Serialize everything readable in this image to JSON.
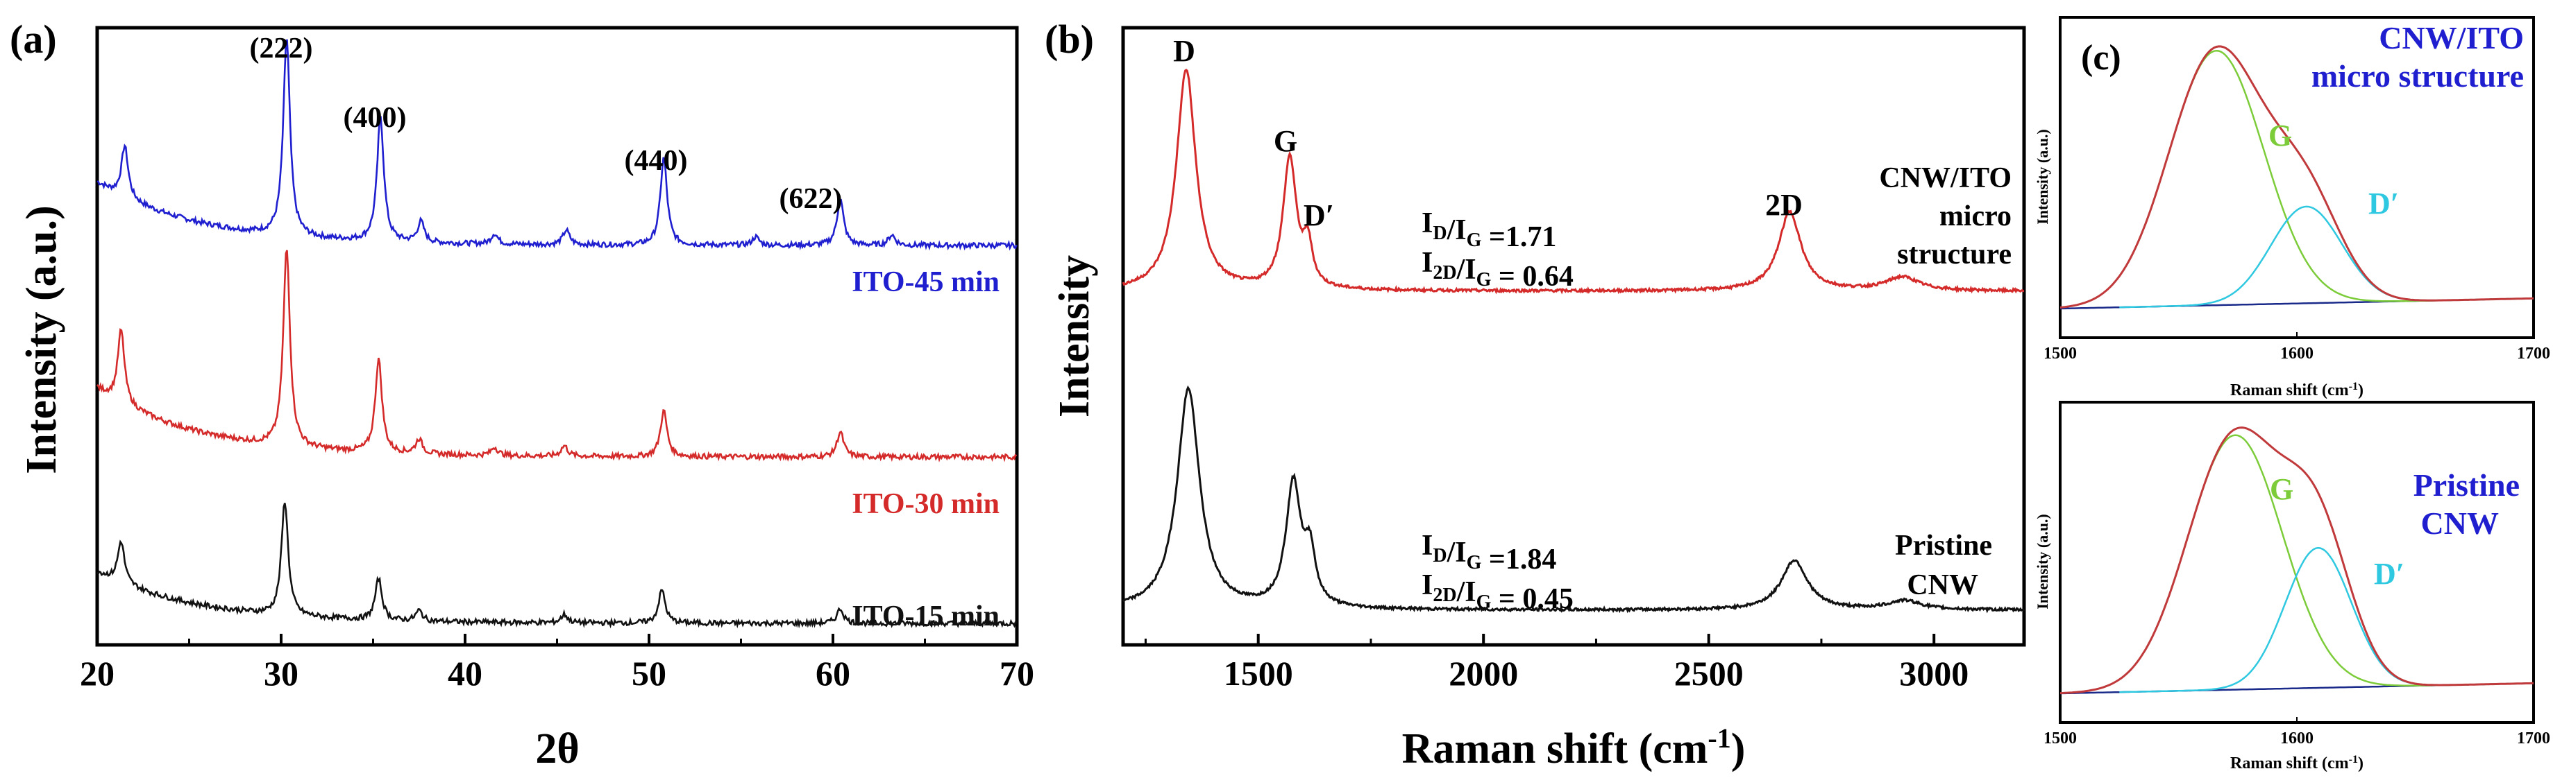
{
  "panels": {
    "a": {
      "label": "(a)",
      "ylabel": "Intensity (a.u.)",
      "xlabel": "2θ",
      "xticks": [
        "20",
        "30",
        "40",
        "50",
        "60",
        "70"
      ],
      "peak_labels": [
        "(222)",
        "(400)",
        "(440)",
        "(622)"
      ],
      "series_labels": [
        "ITO-45 min",
        "ITO-30 min",
        "ITO-15 min"
      ]
    },
    "b": {
      "label": "(b)",
      "ylabel": "Intensity",
      "xlabel": "Raman shift (cm",
      "xlabel_sup": "-1",
      "xlabel_end": ")",
      "xticks": [
        "1500",
        "2000",
        "2500",
        "3000"
      ],
      "peak_labels": [
        "D",
        "G",
        "D′",
        "2D"
      ],
      "ratio_top_1": "I_D/I_G =1.71",
      "ratio_top_2": "I_2D/I_G = 0.64",
      "ratio_bottom_1": "I_D/I_G =1.84",
      "ratio_bottom_2": "I_2D/I_G = 0.45",
      "sample_top_1": "CNW/ITO",
      "sample_top_2": "micro",
      "sample_top_3": "structure",
      "sample_bottom_1": "Pristine",
      "sample_bottom_2": "CNW"
    },
    "c": {
      "label": "(c)",
      "ylabel": "Intensity (a.u.)",
      "xlabel": "Raman shift (cm",
      "xlabel_sup": "-1",
      "xlabel_end": ")",
      "xticks": [
        "1500",
        "1600",
        "1700"
      ],
      "top_title_1": "CNW/ITO",
      "top_title_2": "micro structure",
      "bottom_title_1": "Pristine",
      "bottom_title_2": "CNW",
      "fit_labels": [
        "G",
        "D′"
      ]
    }
  },
  "colors": {
    "blue": "#1f1fd0",
    "red": "#d42a2a",
    "black": "#111111",
    "green": "#7ccc3a",
    "cyan": "#2ec8e0",
    "navy": "#1a2a8a",
    "baseline_cyan": "#38c8d8"
  },
  "chart_data": [
    {
      "type": "line",
      "panel": "a",
      "xlabel": "2θ",
      "ylabel": "Intensity (a.u.)",
      "xlim": [
        20,
        70
      ],
      "series": [
        {
          "name": "ITO-45 min",
          "color": "blue",
          "offset": 2.0,
          "peaks": [
            [
              21.5,
              0.25
            ],
            [
              30.3,
              0.95
            ],
            [
              35.4,
              0.6
            ],
            [
              37.6,
              0.1
            ],
            [
              41.6,
              0.05
            ],
            [
              45.5,
              0.07
            ],
            [
              50.8,
              0.42
            ],
            [
              55.8,
              0.04
            ],
            [
              60.4,
              0.22
            ],
            [
              63.2,
              0.05
            ]
          ],
          "decay": 0.55
        },
        {
          "name": "ITO-30 min",
          "color": "red",
          "offset": 1.0,
          "peaks": [
            [
              21.3,
              0.35
            ],
            [
              30.3,
              0.95
            ],
            [
              35.3,
              0.45
            ],
            [
              37.5,
              0.07
            ],
            [
              41.6,
              0.04
            ],
            [
              45.4,
              0.05
            ],
            [
              50.8,
              0.22
            ],
            [
              60.4,
              0.12
            ]
          ],
          "decay": 0.6
        },
        {
          "name": "ITO-15 min",
          "color": "black",
          "offset": 0.0,
          "peaks": [
            [
              21.3,
              0.2
            ],
            [
              30.2,
              0.55
            ],
            [
              35.3,
              0.2
            ],
            [
              37.5,
              0.05
            ],
            [
              45.4,
              0.04
            ],
            [
              50.7,
              0.16
            ],
            [
              60.4,
              0.07
            ]
          ],
          "decay": 0.45
        }
      ]
    },
    {
      "type": "line",
      "panel": "b",
      "xlabel": "Raman shift (cm-1)",
      "ylabel": "Intensity",
      "xlim": [
        1200,
        3200
      ],
      "series": [
        {
          "name": "CNW/ITO micro structure",
          "color": "red",
          "offset": 1.0,
          "peaks": [
            [
              1340,
              0.98,
              26
            ],
            [
              1570,
              0.58,
              18
            ],
            [
              1610,
              0.18,
              12
            ],
            [
              2680,
              0.35,
              30
            ],
            [
              2930,
              0.06,
              45
            ]
          ]
        },
        {
          "name": "Pristine CNW",
          "color": "black",
          "offset": 0.0,
          "peaks": [
            [
              1345,
              0.98,
              30
            ],
            [
              1578,
              0.55,
              20
            ],
            [
              1615,
              0.22,
              14
            ],
            [
              2690,
              0.22,
              35
            ],
            [
              2935,
              0.04,
              45
            ]
          ]
        }
      ]
    },
    {
      "type": "line",
      "panel": "c-top",
      "title": "CNW/ITO micro structure",
      "xlabel": "Raman shift (cm-1)",
      "ylabel": "Intensity (a.u.)",
      "xlim": [
        1500,
        1700
      ],
      "components": {
        "G": {
          "center": 1566,
          "height": 1.0,
          "width": 20
        },
        "D′": {
          "center": 1604,
          "height": 0.38,
          "width": 15
        }
      }
    },
    {
      "type": "line",
      "panel": "c-bottom",
      "title": "Pristine CNW",
      "xlabel": "Raman shift (cm-1)",
      "ylabel": "Intensity (a.u.)",
      "xlim": [
        1500,
        1700
      ],
      "components": {
        "G": {
          "center": 1574,
          "height": 1.0,
          "width": 20
        },
        "D′": {
          "center": 1609,
          "height": 0.55,
          "width": 14
        }
      }
    }
  ]
}
